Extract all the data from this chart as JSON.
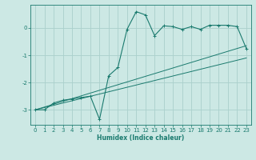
{
  "xlabel": "Humidex (Indice chaleur)",
  "bg_color": "#cce8e4",
  "grid_color": "#aad0cc",
  "line_color": "#1a7a6e",
  "xlim": [
    -0.5,
    23.5
  ],
  "ylim": [
    -3.55,
    0.85
  ],
  "xticks": [
    0,
    1,
    2,
    3,
    4,
    5,
    6,
    7,
    8,
    9,
    10,
    11,
    12,
    13,
    14,
    15,
    16,
    17,
    18,
    19,
    20,
    21,
    22,
    23
  ],
  "yticks": [
    -3,
    -2,
    -1,
    0
  ],
  "series1_x": [
    0,
    1,
    2,
    3,
    4,
    5,
    6,
    7,
    8,
    9,
    10,
    11,
    12,
    13,
    14,
    15,
    16,
    17,
    18,
    19,
    20,
    21,
    22,
    23
  ],
  "series1_y": [
    -3.0,
    -3.0,
    -2.75,
    -2.65,
    -2.6,
    -2.55,
    -2.5,
    -3.35,
    -1.75,
    -1.45,
    -0.05,
    0.6,
    0.48,
    -0.28,
    0.08,
    0.05,
    -0.05,
    0.05,
    -0.05,
    0.1,
    0.1,
    0.1,
    0.05,
    -0.75
  ],
  "series2_x": [
    0,
    23
  ],
  "series2_y": [
    -3.0,
    -0.65
  ],
  "series3_x": [
    0,
    23
  ],
  "series3_y": [
    -3.0,
    -1.1
  ]
}
